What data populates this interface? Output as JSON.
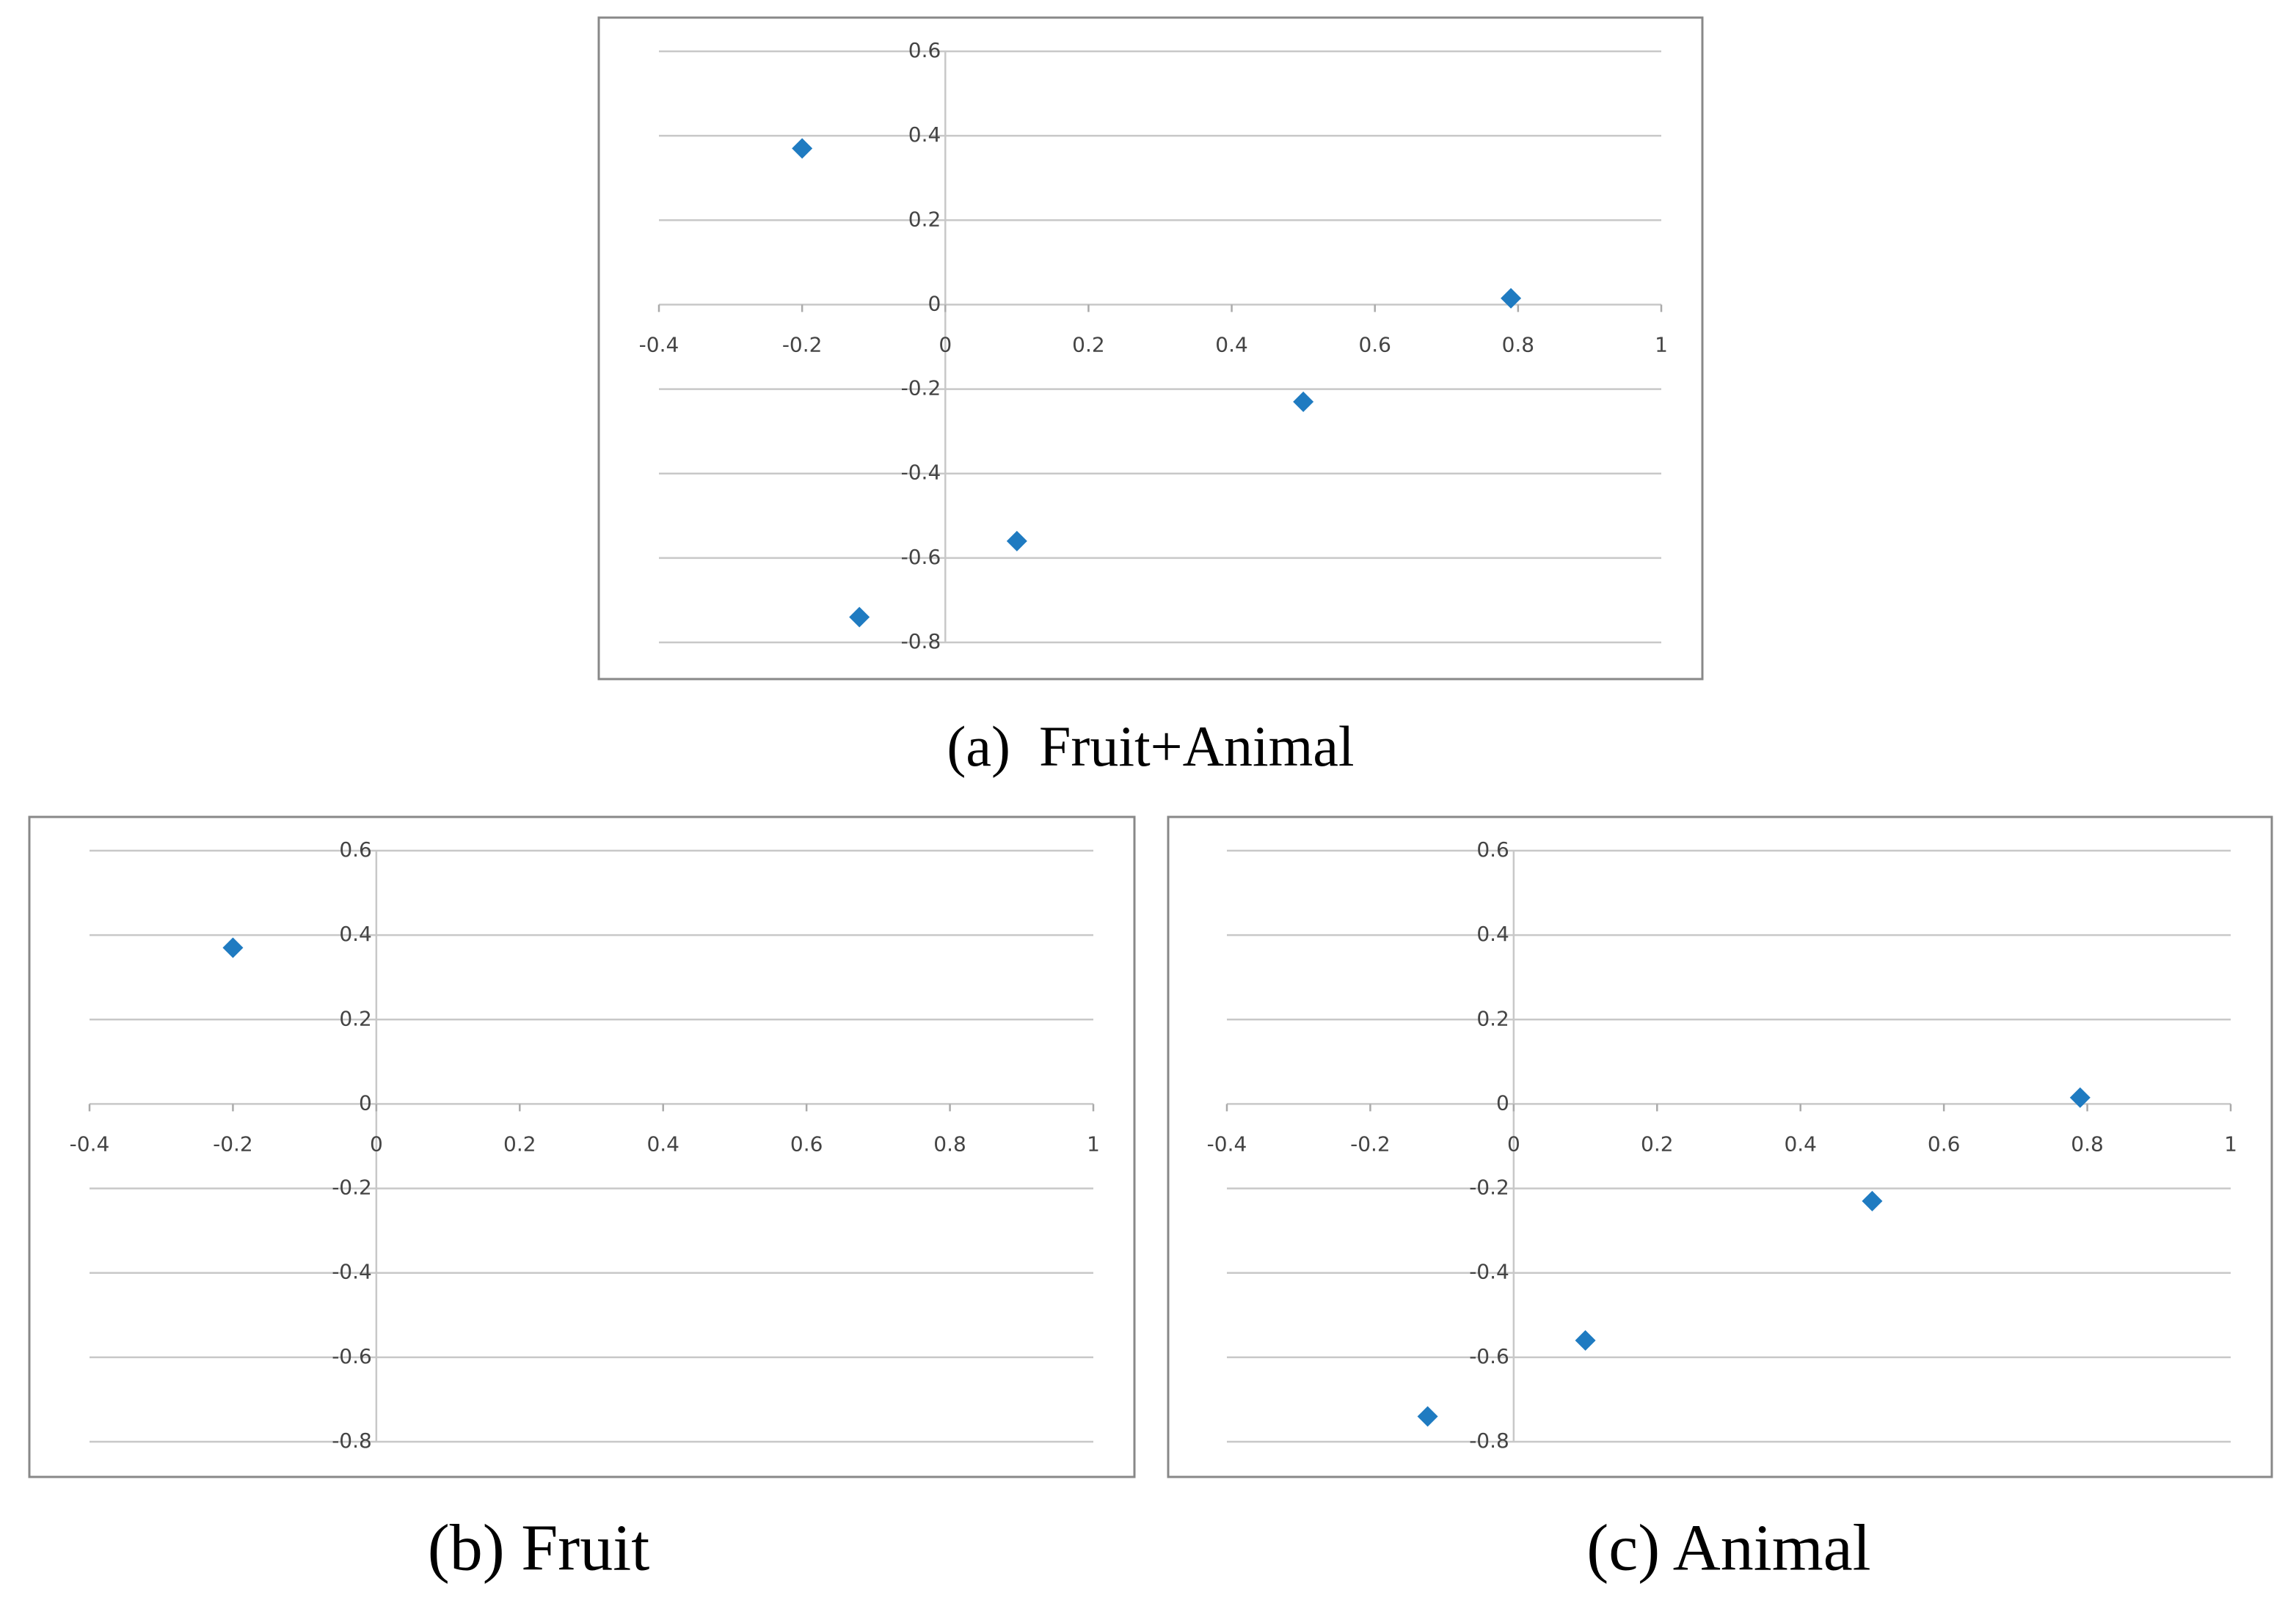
{
  "chart_data": [
    {
      "type": "scatter",
      "caption": "(a)  Fruit+Animal",
      "x": [
        -0.2,
        -0.12,
        0.1,
        0.5,
        0.79
      ],
      "values": [
        0.37,
        -0.74,
        -0.56,
        -0.23,
        0.015
      ],
      "color": "#1f7bc1",
      "xlim": [
        -0.4,
        1
      ],
      "ylim": [
        -0.8,
        0.6
      ],
      "xticks": [
        -0.4,
        -0.2,
        0,
        0.2,
        0.4,
        0.6,
        0.8,
        1
      ],
      "yticks": [
        0.6,
        0.4,
        0.2,
        0,
        -0.2,
        -0.4,
        -0.6,
        -0.8
      ],
      "grid": true
    },
    {
      "type": "scatter",
      "caption": "(b) Fruit",
      "x": [
        -0.2
      ],
      "values": [
        0.37
      ],
      "color": "#1f7bc1",
      "xlim": [
        -0.4,
        1
      ],
      "ylim": [
        -0.8,
        0.6
      ],
      "xticks": [
        -0.4,
        -0.2,
        0,
        0.2,
        0.4,
        0.6,
        0.8,
        1
      ],
      "yticks": [
        0.6,
        0.4,
        0.2,
        0,
        -0.2,
        -0.4,
        -0.6,
        -0.8
      ],
      "grid": true
    },
    {
      "type": "scatter",
      "caption": "(c) Animal",
      "x": [
        -0.12,
        0.1,
        0.5,
        0.79
      ],
      "values": [
        -0.74,
        -0.56,
        -0.23,
        0.015
      ],
      "color": "#1f7bc1",
      "xlim": [
        -0.4,
        1
      ],
      "ylim": [
        -0.8,
        0.6
      ],
      "xticks": [
        -0.4,
        -0.2,
        0,
        0.2,
        0.4,
        0.6,
        0.8,
        1
      ],
      "yticks": [
        0.6,
        0.4,
        0.2,
        0,
        -0.2,
        -0.4,
        -0.6,
        -0.8
      ],
      "grid": true
    }
  ]
}
